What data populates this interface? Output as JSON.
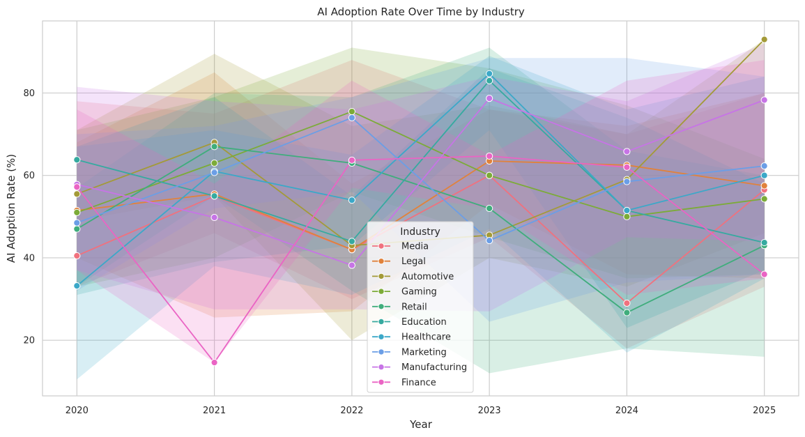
{
  "chart_data": {
    "type": "line",
    "title": "AI Adoption Rate Over Time by Industry",
    "xlabel": "Year",
    "ylabel": "AI Adoption Rate (%)",
    "x": [
      2020,
      2021,
      2022,
      2023,
      2024,
      2025
    ],
    "x_tick_labels": [
      "2020",
      "2021",
      "2022",
      "2023",
      "2024",
      "2025"
    ],
    "xlim": [
      2019.75,
      2025.25
    ],
    "ylim": [
      6.5,
      97.5
    ],
    "y_ticks": [
      20,
      40,
      60,
      80
    ],
    "y_tick_labels": [
      "20",
      "40",
      "60",
      "80"
    ],
    "grid": true,
    "legend_title": "Industry",
    "legend_position": "lower-center",
    "band_opacity": 0.2,
    "series": [
      {
        "name": "Media",
        "color": "#f0717e",
        "values": [
          40.5,
          55.0,
          42.0,
          60.0,
          29.0,
          56.5
        ],
        "lower": [
          33,
          46,
          30,
          45,
          18,
          33
        ],
        "upper": [
          78,
          75,
          88,
          76,
          70,
          80
        ]
      },
      {
        "name": "Legal",
        "color": "#e0823c",
        "values": [
          51.5,
          55.5,
          42.0,
          63.5,
          62.5,
          57.5
        ],
        "lower": [
          40,
          25.5,
          27,
          53,
          36,
          35
        ],
        "upper": [
          68,
          85,
          58,
          76,
          72,
          80
        ]
      },
      {
        "name": "Automotive",
        "color": "#a39a38",
        "values": [
          55.5,
          68.0,
          43.0,
          45.5,
          59.0,
          93.0
        ],
        "lower": [
          49,
          55,
          20,
          40,
          33,
          46
        ],
        "upper": [
          71,
          89.5,
          72,
          77,
          70,
          93
        ]
      },
      {
        "name": "Gaming",
        "color": "#7cab38",
        "values": [
          51.0,
          63.0,
          75.5,
          60.0,
          50.0,
          54.3
        ],
        "lower": [
          33,
          40,
          56,
          45,
          35,
          36
        ],
        "upper": [
          71,
          79,
          91,
          86,
          77,
          64
        ]
      },
      {
        "name": "Retail",
        "color": "#3fad7c",
        "values": [
          47.0,
          67.0,
          63.0,
          52.0,
          26.7,
          43.0
        ],
        "lower": [
          33,
          55,
          32,
          12,
          18,
          16
        ],
        "upper": [
          57,
          80,
          79,
          91,
          66,
          60
        ]
      },
      {
        "name": "Education",
        "color": "#36aaa0",
        "values": [
          63.8,
          55.0,
          44.0,
          83.0,
          51.5,
          43.7
        ],
        "lower": [
          31,
          39,
          43,
          71,
          23,
          37
        ],
        "upper": [
          67,
          79,
          55,
          86,
          74,
          58
        ]
      },
      {
        "name": "Healthcare",
        "color": "#3ba8c8",
        "values": [
          33.2,
          61.0,
          54.0,
          84.7,
          51.5,
          60.0
        ],
        "lower": [
          10.5,
          38,
          31,
          47,
          17,
          35
        ],
        "upper": [
          67,
          71,
          65,
          89,
          76,
          84
        ]
      },
      {
        "name": "Marketing",
        "color": "#6b9ee6",
        "values": [
          48.5,
          60.7,
          74.0,
          44.2,
          58.5,
          62.3
        ],
        "lower": [
          32,
          52,
          56,
          24.5,
          34,
          36
        ],
        "upper": [
          70,
          72,
          79,
          88.5,
          88.5,
          84
        ]
      },
      {
        "name": "Manufacturing",
        "color": "#c774e6",
        "values": [
          57.8,
          49.8,
          38.2,
          78.7,
          65.8,
          78.3
        ],
        "lower": [
          37,
          27.5,
          27.5,
          27,
          45,
          44
        ],
        "upper": [
          81.5,
          78,
          76,
          84,
          78,
          92
        ]
      },
      {
        "name": "Finance",
        "color": "#ea64c4",
        "values": [
          57.2,
          14.6,
          63.7,
          64.7,
          62.0,
          36.0
        ],
        "lower": [
          37,
          14.6,
          57,
          52,
          31,
          35
        ],
        "upper": [
          76,
          58,
          83,
          65,
          83,
          88
        ]
      }
    ]
  }
}
